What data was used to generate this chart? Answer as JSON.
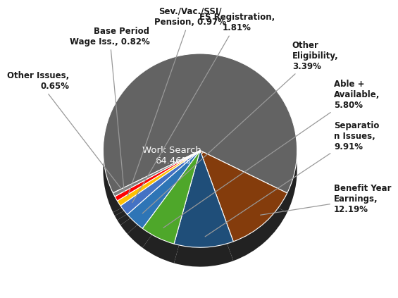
{
  "slices": [
    {
      "label": "Work Search,\n64.46%",
      "value": 64.46,
      "color": "#636363",
      "inside": true,
      "text_inside": [
        -0.28,
        -0.05
      ]
    },
    {
      "label": "Benefit Year\nEarnings,\n12.19%",
      "value": 12.19,
      "color": "#843C0C",
      "inside": false
    },
    {
      "label": "Separatio\nn Issues,\n9.91%",
      "value": 9.91,
      "color": "#1F4E79",
      "inside": false
    },
    {
      "label": "Able +\nAvailable,\n5.80%",
      "value": 5.8,
      "color": "#4EA72A",
      "inside": false
    },
    {
      "label": "Other\nEligibility,\n3.39%",
      "value": 3.39,
      "color": "#2E75B6",
      "inside": false
    },
    {
      "label": "ES Registration,\n1.81%",
      "value": 1.81,
      "color": "#4472C4",
      "inside": false
    },
    {
      "label": "Sev./Vac./SSI/\nPension, 0.97%",
      "value": 0.97,
      "color": "#FFC000",
      "inside": false
    },
    {
      "label": "Base Period\nWage Iss., 0.82%",
      "value": 0.82,
      "color": "#FF0000",
      "inside": false
    },
    {
      "label": "Other Issues,\n0.65%",
      "value": 0.65,
      "color": "#7F7F7F",
      "inside": false
    }
  ],
  "startangle": 206.0,
  "label_coords": [
    [
      null,
      null
    ],
    [
      1.38,
      -0.5
    ],
    [
      1.38,
      0.15
    ],
    [
      1.38,
      0.58
    ],
    [
      0.95,
      0.98
    ],
    [
      0.38,
      1.32
    ],
    [
      -0.1,
      1.38
    ],
    [
      -0.52,
      1.18
    ],
    [
      -1.35,
      0.72
    ]
  ],
  "shadow_depth": 0.07,
  "shadow_color": "#222222",
  "bg": "#FFFFFF",
  "font_size_outside": 8.5,
  "font_size_inside": 9.5
}
